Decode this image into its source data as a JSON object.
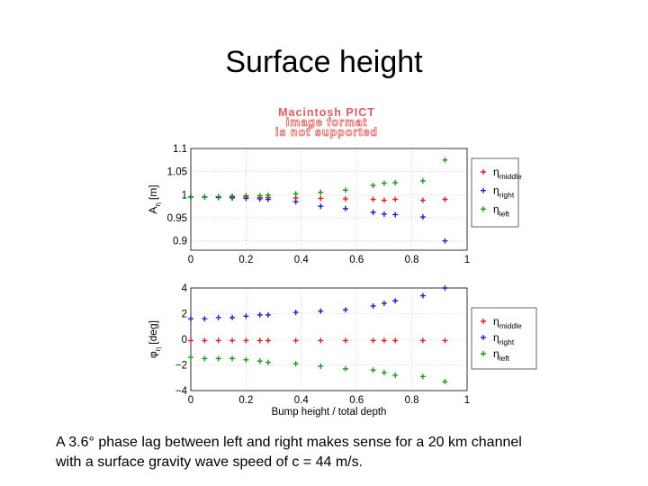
{
  "slide": {
    "title": "Surface height",
    "image_notice": [
      "Macintosh PICT",
      "image format",
      "is not supported"
    ],
    "caption_lines": [
      "A 3.6° phase lag between left and right makes sense for a 20 km channel",
      "with a surface gravity wave speed of c = 44 m/s."
    ]
  },
  "colors": {
    "middle": "#e02020",
    "right": "#2020c0",
    "left": "#1a9a1a",
    "axis": "#000000",
    "grid": "#b8b8b8"
  },
  "chart_data": [
    {
      "type": "scatter",
      "title": "",
      "xlabel": "",
      "ylabel": "A",
      "ylabel_sub": "η",
      "ylabel_unit": "[m]",
      "xlim": [
        0,
        1
      ],
      "ylim": [
        0.88,
        1.1
      ],
      "xticks": [
        "0",
        "0.2",
        "0.4",
        "0.6",
        "0.8",
        "1"
      ],
      "yticks": [
        "1.1",
        "1.05",
        "1",
        "0.95",
        "0.9"
      ],
      "ytick_values": [
        1.1,
        1.05,
        1.0,
        0.95,
        0.9
      ],
      "grid": true,
      "legend_position": "right",
      "series": [
        {
          "name": "η",
          "sub": "middle",
          "color_key": "middle",
          "x": [
            0,
            0.05,
            0.1,
            0.15,
            0.2,
            0.25,
            0.28,
            0.38,
            0.47,
            0.56,
            0.66,
            0.7,
            0.74,
            0.84,
            0.92
          ],
          "y": [
            0.995,
            0.995,
            0.995,
            0.995,
            0.995,
            0.994,
            0.994,
            0.993,
            0.992,
            0.991,
            0.99,
            0.988,
            0.99,
            0.988,
            0.99
          ]
        },
        {
          "name": "η",
          "sub": "right",
          "color_key": "right",
          "x": [
            0,
            0.05,
            0.1,
            0.15,
            0.2,
            0.25,
            0.28,
            0.38,
            0.47,
            0.56,
            0.66,
            0.7,
            0.74,
            0.84,
            0.92
          ],
          "y": [
            0.995,
            0.995,
            0.994,
            0.993,
            0.992,
            0.991,
            0.99,
            0.985,
            0.975,
            0.97,
            0.962,
            0.958,
            0.957,
            0.952,
            0.9
          ]
        },
        {
          "name": "η",
          "sub": "left",
          "color_key": "left",
          "x": [
            0,
            0.05,
            0.1,
            0.15,
            0.2,
            0.25,
            0.28,
            0.38,
            0.47,
            0.56,
            0.66,
            0.7,
            0.74,
            0.84,
            0.92
          ],
          "y": [
            0.995,
            0.995,
            0.996,
            0.997,
            0.998,
            0.998,
            0.999,
            1.002,
            1.005,
            1.01,
            1.02,
            1.025,
            1.026,
            1.03,
            1.075
          ]
        }
      ]
    },
    {
      "type": "scatter",
      "title": "",
      "xlabel": "Bump height / total depth",
      "ylabel": "φ",
      "ylabel_sub": "η",
      "ylabel_unit": "[deg]",
      "xlim": [
        0,
        1
      ],
      "ylim": [
        -4,
        4
      ],
      "xticks": [
        "0",
        "0.2",
        "0.4",
        "0.6",
        "0.8",
        "1"
      ],
      "yticks": [
        "4",
        "2",
        "0",
        "−2",
        "−4"
      ],
      "ytick_values": [
        4,
        2,
        0,
        -2,
        -4
      ],
      "grid": true,
      "legend_position": "right",
      "series": [
        {
          "name": "η",
          "sub": "middle",
          "color_key": "middle",
          "x": [
            0,
            0.05,
            0.1,
            0.15,
            0.2,
            0.25,
            0.28,
            0.38,
            0.47,
            0.56,
            0.66,
            0.7,
            0.74,
            0.84,
            0.92
          ],
          "y": [
            -0.1,
            -0.1,
            -0.1,
            -0.1,
            -0.1,
            -0.1,
            -0.1,
            -0.1,
            -0.1,
            -0.1,
            -0.1,
            -0.1,
            -0.1,
            -0.1,
            -0.1
          ]
        },
        {
          "name": "η",
          "sub": "right",
          "color_key": "right",
          "x": [
            0,
            0.05,
            0.1,
            0.15,
            0.2,
            0.25,
            0.28,
            0.38,
            0.47,
            0.56,
            0.66,
            0.7,
            0.74,
            0.84,
            0.92
          ],
          "y": [
            1.6,
            1.6,
            1.7,
            1.7,
            1.8,
            1.9,
            1.9,
            2.1,
            2.2,
            2.3,
            2.6,
            2.8,
            3.0,
            3.4,
            4.0
          ]
        },
        {
          "name": "η",
          "sub": "left",
          "color_key": "left",
          "x": [
            0,
            0.05,
            0.1,
            0.15,
            0.2,
            0.25,
            0.28,
            0.38,
            0.47,
            0.56,
            0.66,
            0.7,
            0.74,
            0.84,
            0.92
          ],
          "y": [
            -1.4,
            -1.5,
            -1.5,
            -1.5,
            -1.6,
            -1.7,
            -1.8,
            -1.9,
            -2.1,
            -2.3,
            -2.4,
            -2.6,
            -2.8,
            -2.9,
            -3.3
          ]
        }
      ]
    }
  ]
}
